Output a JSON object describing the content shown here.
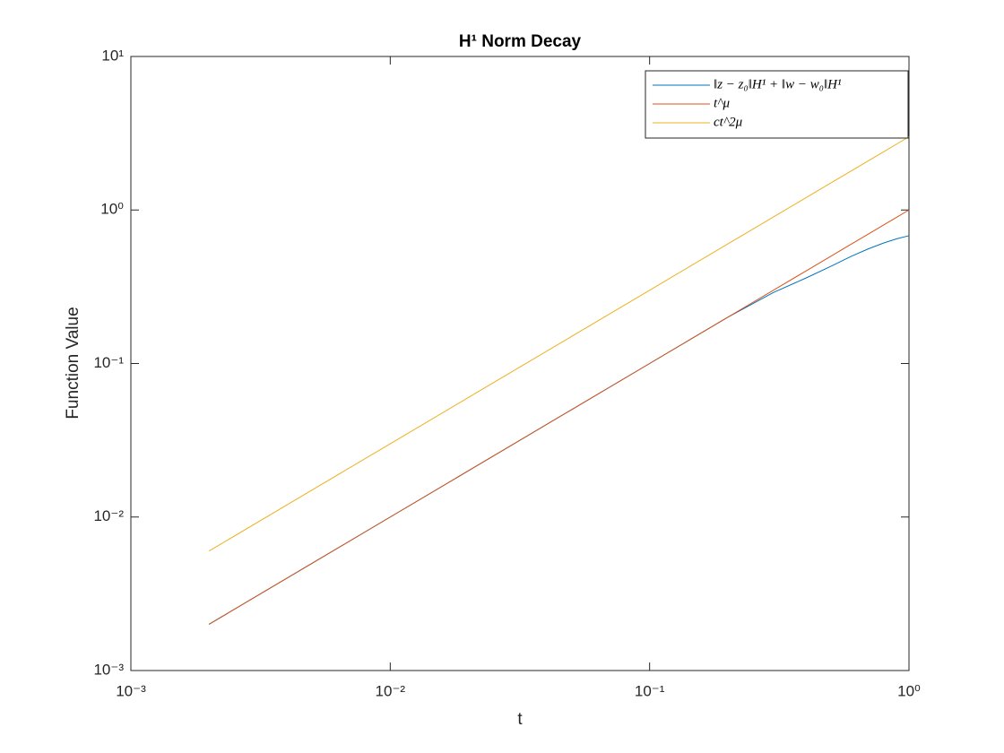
{
  "chart_data": {
    "type": "line",
    "title": "H¹ Norm Decay",
    "xlabel": "t",
    "ylabel": "Function Value",
    "xscale": "log",
    "yscale": "log",
    "legend": "top-right",
    "grid": false,
    "x": [
      0.002,
      0.005,
      0.01,
      0.02,
      0.05,
      0.1,
      0.2,
      0.3,
      0.4,
      0.5,
      0.6,
      0.7,
      0.8,
      0.9,
      1
    ],
    "series": [
      {
        "name": "‖z − z₀‖H¹ + ‖w − w₀‖H¹",
        "color": "#0072bd",
        "values": [
          0.002,
          0.005,
          0.01,
          0.02,
          0.05,
          0.1,
          0.2,
          0.29,
          0.36,
          0.43,
          0.5,
          0.56,
          0.61,
          0.65,
          0.68
        ]
      },
      {
        "name": "t^μ",
        "color": "#d95319",
        "values": [
          0.002,
          0.005,
          0.01,
          0.02,
          0.05,
          0.1,
          0.2,
          0.3,
          0.4,
          0.5,
          0.6,
          0.7,
          0.8,
          0.9,
          1
        ]
      },
      {
        "name": "ct^2μ",
        "color": "#edb120",
        "values": [
          0.006,
          0.015,
          0.03,
          0.06,
          0.15,
          0.3,
          0.6,
          0.9,
          1.2,
          1.5,
          1.8,
          2.1,
          2.4,
          2.7,
          3
        ]
      }
    ],
    "xlim": [
      0.001,
      1
    ],
    "ylim": [
      0.001,
      10
    ],
    "xticks": [
      {
        "value": 0.001,
        "label": "10⁻³"
      },
      {
        "value": 0.01,
        "label": "10⁻²"
      },
      {
        "value": 0.1,
        "label": "10⁻¹"
      },
      {
        "value": 1,
        "label": "10⁰"
      }
    ],
    "yticks": [
      {
        "value": 0.001,
        "label": "10⁻³"
      },
      {
        "value": 0.01,
        "label": "10⁻²"
      },
      {
        "value": 0.1,
        "label": "10⁻¹"
      },
      {
        "value": 1,
        "label": "10⁰"
      },
      {
        "value": 10,
        "label": "10¹"
      }
    ]
  }
}
